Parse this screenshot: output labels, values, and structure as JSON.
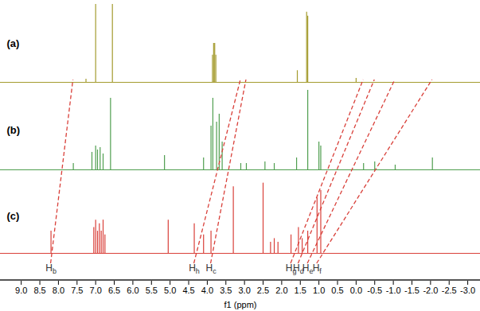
{
  "chart_data": {
    "type": "stick",
    "x_label": "f1 (ppm)",
    "xlim": [
      9.56,
      -3.34
    ],
    "xticks": [
      {
        "value": 9,
        "label": "9.0"
      },
      8.5,
      {
        "value": 8,
        "label": "8.0"
      },
      7.5,
      {
        "value": 7,
        "label": "7.0"
      },
      6.5,
      {
        "value": 6,
        "label": "6.0"
      },
      5.5,
      {
        "value": 5,
        "label": "5.0"
      },
      4.5,
      {
        "value": 4,
        "label": "4.0"
      },
      3.5,
      {
        "value": 3,
        "label": "3.0"
      },
      2.5,
      {
        "value": 2,
        "label": "2.0"
      },
      1.5,
      {
        "value": 1,
        "label": "1.0"
      },
      0.5,
      {
        "value": 0,
        "label": "0.0"
      },
      -0.5,
      {
        "value": -1,
        "label": "-1.0"
      },
      -1.5,
      {
        "value": -2,
        "label": "-2.0"
      },
      -2.5,
      {
        "value": -3,
        "label": "-3.0"
      }
    ],
    "ylim": [
      0,
      1
    ],
    "tick_labels": "x",
    "series": [
      {
        "name": "(a)",
        "color": "#a49b2e",
        "x": [
          7.26,
          7.0,
          6.55,
          3.86,
          3.83,
          3.8,
          3.77,
          1.58,
          1.33,
          1.3,
          0.0
        ],
        "values": [
          0.04,
          1.0,
          1.0,
          0.35,
          0.5,
          0.5,
          0.35,
          0.15,
          0.9,
          0.85,
          0.05
        ]
      },
      {
        "name": "(b)",
        "color": "#4f9e4f",
        "x": [
          7.6,
          7.1,
          7.0,
          6.95,
          6.88,
          6.8,
          6.6,
          5.15,
          4.1,
          3.9,
          3.85,
          3.75,
          3.68,
          3.6,
          3.1,
          2.95,
          2.45,
          2.2,
          1.6,
          1.3,
          1.0,
          0.95,
          -0.2,
          -0.5,
          -1.05,
          -2.05
        ],
        "values": [
          0.08,
          0.22,
          0.3,
          0.25,
          0.28,
          0.2,
          0.9,
          0.18,
          0.15,
          0.55,
          0.9,
          0.6,
          0.7,
          0.35,
          0.08,
          0.08,
          0.1,
          0.08,
          0.15,
          1.0,
          0.35,
          0.3,
          0.08,
          0.1,
          0.06,
          0.15
        ]
      },
      {
        "name": "(c)",
        "color": "#d9403a",
        "x": [
          8.2,
          7.05,
          7.0,
          6.95,
          6.9,
          6.85,
          6.8,
          6.75,
          5.05,
          4.35,
          4.1,
          3.9,
          3.3,
          2.5,
          2.3,
          2.2,
          2.1,
          1.75,
          1.55,
          1.45,
          1.3,
          1.05,
          0.95
        ],
        "values": [
          0.3,
          0.35,
          0.45,
          0.3,
          0.4,
          0.3,
          0.45,
          0.25,
          0.45,
          0.4,
          0.25,
          0.3,
          0.9,
          0.95,
          0.15,
          0.2,
          0.15,
          0.25,
          0.35,
          0.2,
          0.3,
          0.75,
          0.85
        ]
      }
    ],
    "annotations": [
      {
        "label": "Hb",
        "from": 8.2,
        "to": 7.6
      },
      {
        "label": "Hh",
        "from": 4.35,
        "to": 3.1
      },
      {
        "label": "Hc",
        "from": 3.9,
        "to": 2.95
      },
      {
        "label": "Hg",
        "from": 1.75,
        "to": -0.2
      },
      {
        "label": "Hd",
        "from": 1.55,
        "to": -0.5
      },
      {
        "label": "He",
        "from": 1.3,
        "to": -1.05
      },
      {
        "label": "Hf",
        "from": 1.05,
        "to": -2.05
      }
    ]
  }
}
